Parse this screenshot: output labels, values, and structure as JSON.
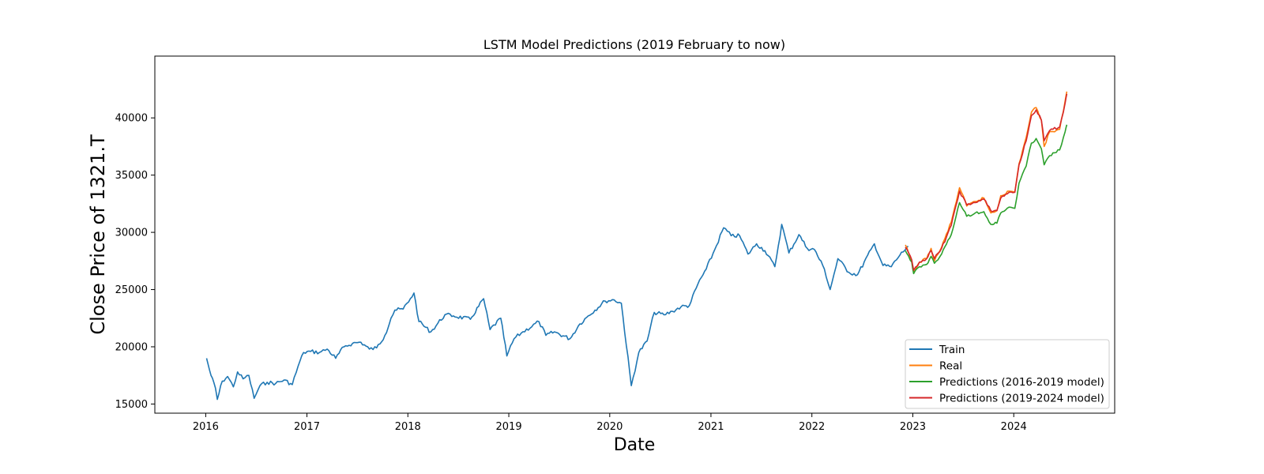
{
  "chart_data": {
    "type": "line",
    "title": "LSTM Model Predictions (2019 February to now)",
    "xlabel": "Date",
    "ylabel": "Close Price of 1321.T",
    "x_ticks": [
      "2016",
      "2017",
      "2018",
      "2019",
      "2020",
      "2021",
      "2022",
      "2023",
      "2024"
    ],
    "y_ticks": [
      "15000",
      "20000",
      "25000",
      "30000",
      "35000",
      "40000"
    ],
    "xlim": [
      "2015-07-01",
      "2024-12-31"
    ],
    "ylim": [
      14200,
      45400
    ],
    "grid": false,
    "legend_position": "lower-right",
    "colors": {
      "train": "#1f77b4",
      "real": "#ff7f0e",
      "pred_a": "#2ca02c",
      "pred_b": "#d62728"
    },
    "series": [
      {
        "name": "Train",
        "color": "#1f77b4",
        "points": [
          [
            "2016-01-04",
            19000
          ],
          [
            "2016-01-20",
            17500
          ],
          [
            "2016-02-05",
            16400
          ],
          [
            "2016-02-12",
            15400
          ],
          [
            "2016-03-01",
            17000
          ],
          [
            "2016-03-20",
            17400
          ],
          [
            "2016-04-10",
            16500
          ],
          [
            "2016-04-25",
            17800
          ],
          [
            "2016-05-15",
            17200
          ],
          [
            "2016-06-05",
            17500
          ],
          [
            "2016-06-24",
            15500
          ],
          [
            "2016-07-15",
            16600
          ],
          [
            "2016-08-10",
            16900
          ],
          [
            "2016-09-10",
            16800
          ],
          [
            "2016-10-10",
            17100
          ],
          [
            "2016-11-09",
            16700
          ],
          [
            "2016-11-30",
            18300
          ],
          [
            "2016-12-20",
            19500
          ],
          [
            "2017-01-15",
            19600
          ],
          [
            "2017-02-15",
            19500
          ],
          [
            "2017-03-15",
            19800
          ],
          [
            "2017-04-15",
            19000
          ],
          [
            "2017-05-15",
            20000
          ],
          [
            "2017-06-15",
            20300
          ],
          [
            "2017-07-15",
            20400
          ],
          [
            "2017-08-15",
            19800
          ],
          [
            "2017-09-10",
            19900
          ],
          [
            "2017-10-10",
            21000
          ],
          [
            "2017-11-01",
            22500
          ],
          [
            "2017-11-15",
            23200
          ],
          [
            "2017-12-15",
            23300
          ],
          [
            "2018-01-10",
            24200
          ],
          [
            "2018-01-23",
            24700
          ],
          [
            "2018-02-10",
            22200
          ],
          [
            "2018-03-25",
            21300
          ],
          [
            "2018-05-15",
            22800
          ],
          [
            "2018-06-15",
            22700
          ],
          [
            "2018-08-15",
            22400
          ],
          [
            "2018-10-02",
            24200
          ],
          [
            "2018-10-25",
            21500
          ],
          [
            "2018-12-03",
            22500
          ],
          [
            "2018-12-25",
            19200
          ],
          [
            "2019-01-20",
            20700
          ],
          [
            "2019-02-15",
            21200
          ],
          [
            "2019-04-20",
            22200
          ],
          [
            "2019-05-15",
            21000
          ],
          [
            "2019-06-15",
            21300
          ],
          [
            "2019-08-10",
            20700
          ],
          [
            "2019-09-15",
            22000
          ],
          [
            "2019-10-15",
            22700
          ],
          [
            "2019-12-15",
            24000
          ],
          [
            "2020-01-17",
            24100
          ],
          [
            "2020-02-12",
            23800
          ],
          [
            "2020-03-19",
            16600
          ],
          [
            "2020-04-15",
            19500
          ],
          [
            "2020-05-15",
            20500
          ],
          [
            "2020-06-10",
            23000
          ],
          [
            "2020-07-15",
            22800
          ],
          [
            "2020-08-15",
            23100
          ],
          [
            "2020-09-15",
            23500
          ],
          [
            "2020-10-15",
            23600
          ],
          [
            "2020-11-15",
            25500
          ],
          [
            "2020-12-15",
            26800
          ],
          [
            "2021-01-15",
            28500
          ],
          [
            "2021-02-16",
            30400
          ],
          [
            "2021-03-15",
            29700
          ],
          [
            "2021-04-15",
            29700
          ],
          [
            "2021-05-15",
            28100
          ],
          [
            "2021-06-15",
            29000
          ],
          [
            "2021-07-15",
            28400
          ],
          [
            "2021-08-20",
            27000
          ],
          [
            "2021-09-14",
            30700
          ],
          [
            "2021-10-10",
            28200
          ],
          [
            "2021-11-15",
            29800
          ],
          [
            "2021-12-15",
            28600
          ],
          [
            "2022-01-10",
            28500
          ],
          [
            "2022-02-15",
            26800
          ],
          [
            "2022-03-08",
            25000
          ],
          [
            "2022-04-05",
            27700
          ],
          [
            "2022-05-15",
            26500
          ],
          [
            "2022-06-15",
            26300
          ],
          [
            "2022-08-15",
            29000
          ],
          [
            "2022-09-15",
            27100
          ],
          [
            "2022-10-15",
            27000
          ],
          [
            "2022-11-15",
            28000
          ],
          [
            "2022-12-15",
            28800
          ]
        ]
      },
      {
        "name": "Real",
        "color": "#ff7f0e",
        "points": [
          [
            "2022-12-05",
            28900
          ],
          [
            "2022-12-28",
            27500
          ],
          [
            "2023-01-04",
            26500
          ],
          [
            "2023-01-25",
            27400
          ],
          [
            "2023-02-20",
            27700
          ],
          [
            "2023-03-08",
            28600
          ],
          [
            "2023-03-20",
            27500
          ],
          [
            "2023-04-15",
            28700
          ],
          [
            "2023-05-20",
            30900
          ],
          [
            "2023-06-19",
            33900
          ],
          [
            "2023-07-15",
            32300
          ],
          [
            "2023-08-15",
            32700
          ],
          [
            "2023-09-15",
            33000
          ],
          [
            "2023-10-10",
            31700
          ],
          [
            "2023-11-01",
            31900
          ],
          [
            "2023-11-15",
            33200
          ],
          [
            "2023-12-15",
            33600
          ],
          [
            "2024-01-05",
            33500
          ],
          [
            "2024-01-20",
            36000
          ],
          [
            "2024-02-15",
            38300
          ],
          [
            "2024-03-05",
            40500
          ],
          [
            "2024-03-22",
            40900
          ],
          [
            "2024-04-10",
            39800
          ],
          [
            "2024-04-20",
            37500
          ],
          [
            "2024-05-10",
            38800
          ],
          [
            "2024-06-15",
            39000
          ],
          [
            "2024-07-05",
            41500
          ],
          [
            "2024-07-11",
            42300
          ]
        ]
      },
      {
        "name": "Predictions (2016-2019 model)",
        "color": "#2ca02c",
        "points": [
          [
            "2022-12-05",
            28400
          ],
          [
            "2022-12-28",
            27400
          ],
          [
            "2023-01-04",
            26400
          ],
          [
            "2023-01-25",
            27000
          ],
          [
            "2023-02-20",
            27200
          ],
          [
            "2023-03-08",
            27900
          ],
          [
            "2023-03-20",
            27300
          ],
          [
            "2023-04-15",
            28100
          ],
          [
            "2023-05-20",
            29800
          ],
          [
            "2023-06-19",
            32600
          ],
          [
            "2023-07-15",
            31400
          ],
          [
            "2023-08-15",
            31700
          ],
          [
            "2023-09-15",
            31800
          ],
          [
            "2023-10-10",
            30700
          ],
          [
            "2023-11-01",
            30800
          ],
          [
            "2023-11-15",
            31700
          ],
          [
            "2023-12-15",
            32200
          ],
          [
            "2024-01-05",
            32100
          ],
          [
            "2024-01-20",
            34300
          ],
          [
            "2024-02-15",
            35800
          ],
          [
            "2024-03-05",
            37800
          ],
          [
            "2024-03-22",
            38200
          ],
          [
            "2024-04-10",
            37300
          ],
          [
            "2024-04-20",
            35900
          ],
          [
            "2024-05-10",
            36700
          ],
          [
            "2024-06-15",
            37200
          ],
          [
            "2024-07-05",
            38800
          ],
          [
            "2024-07-11",
            39400
          ]
        ]
      },
      {
        "name": "Predictions (2019-2024 model)",
        "color": "#d62728",
        "points": [
          [
            "2022-12-05",
            28700
          ],
          [
            "2022-12-28",
            27600
          ],
          [
            "2023-01-04",
            26700
          ],
          [
            "2023-01-25",
            27400
          ],
          [
            "2023-02-20",
            27700
          ],
          [
            "2023-03-08",
            28400
          ],
          [
            "2023-03-20",
            27700
          ],
          [
            "2023-04-15",
            28600
          ],
          [
            "2023-05-20",
            30600
          ],
          [
            "2023-06-19",
            33600
          ],
          [
            "2023-07-15",
            32400
          ],
          [
            "2023-08-15",
            32600
          ],
          [
            "2023-09-15",
            32900
          ],
          [
            "2023-10-10",
            31900
          ],
          [
            "2023-11-01",
            31900
          ],
          [
            "2023-11-15",
            33000
          ],
          [
            "2023-12-15",
            33500
          ],
          [
            "2024-01-05",
            33500
          ],
          [
            "2024-01-20",
            35900
          ],
          [
            "2024-02-15",
            38000
          ],
          [
            "2024-03-05",
            40200
          ],
          [
            "2024-03-22",
            40700
          ],
          [
            "2024-04-10",
            39800
          ],
          [
            "2024-04-20",
            38000
          ],
          [
            "2024-05-10",
            38900
          ],
          [
            "2024-06-15",
            39200
          ],
          [
            "2024-07-05",
            41300
          ],
          [
            "2024-07-11",
            42100
          ]
        ]
      }
    ]
  }
}
